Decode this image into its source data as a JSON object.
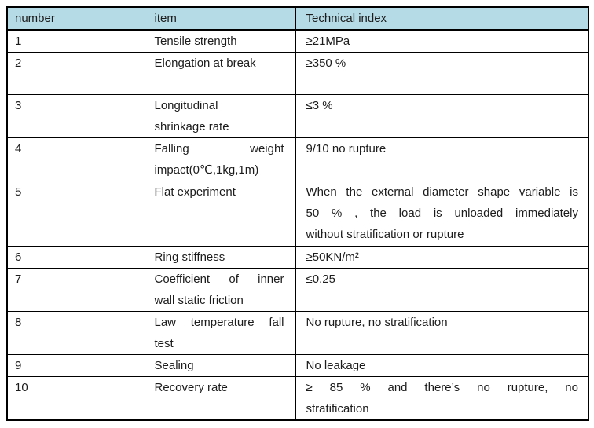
{
  "colors": {
    "header_bg": "#b5dbe6",
    "border": "#000000",
    "text": "#1c1c1c"
  },
  "table": {
    "columns": {
      "number": "number",
      "item": "item",
      "tech": "Technical index"
    },
    "rows": [
      {
        "number": "1",
        "item": [
          "Tensile strength"
        ],
        "index": [
          "≥21MPa"
        ]
      },
      {
        "number": "2",
        "item": [
          "Elongation at break"
        ],
        "index": [
          "≥350 %"
        ]
      },
      {
        "number": "3",
        "item": [
          "Longitudinal",
          "shrinkage rate"
        ],
        "index": [
          "≤3 %"
        ]
      },
      {
        "number": "4",
        "item": [
          "Falling weight",
          "impact(0℃,1kg,1m)"
        ],
        "index": [
          "9/10 no rupture"
        ]
      },
      {
        "number": "5",
        "item": [
          "Flat experiment"
        ],
        "index": [
          "When the external diameter shape variable is",
          "50 % , the load is unloaded immediately",
          "without stratification or rupture"
        ]
      },
      {
        "number": "6",
        "item": [
          "Ring stiffness"
        ],
        "index": [
          "≥50KN/m²"
        ]
      },
      {
        "number": "7",
        "item": [
          "Coefficient of inner",
          "wall static friction"
        ],
        "index": [
          "≤0.25"
        ]
      },
      {
        "number": "8",
        "item": [
          "Law temperature fall",
          "test"
        ],
        "index": [
          "No rupture, no stratification"
        ]
      },
      {
        "number": "9",
        "item": [
          "Sealing"
        ],
        "index": [
          "No leakage"
        ]
      },
      {
        "number": "10",
        "item": [
          "Recovery rate"
        ],
        "index": [
          "≥ 85 %  and there’s no rupture, no",
          "stratification"
        ]
      }
    ]
  }
}
